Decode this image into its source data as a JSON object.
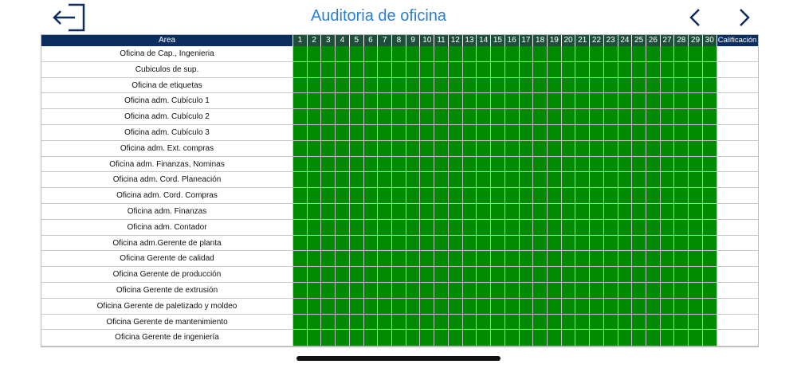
{
  "header": {
    "title": "Auditoria de oficina",
    "back_icon": "exit-arrow-icon",
    "prev_icon": "chevron-left-icon",
    "next_icon": "chevron-right-icon",
    "accent_color": "#2b7fcf"
  },
  "table": {
    "area_header": "Area",
    "score_header": "Calificación",
    "days": [
      "1",
      "2",
      "3",
      "4",
      "5",
      "6",
      "7",
      "8",
      "9",
      "10",
      "11",
      "12",
      "13",
      "14",
      "15",
      "16",
      "17",
      "18",
      "19",
      "20",
      "21",
      "22",
      "23",
      "24",
      "25",
      "26",
      "27",
      "28",
      "29",
      "30"
    ],
    "rows": [
      "Oficina de Cap., Ingenieria",
      "Cubiculos de sup.",
      "Oficina de etiquetas",
      "Oficina adm. Cubículo 1",
      "Oficina adm. Cubículo 2",
      "Oficina adm. Cubículo 3",
      "Oficina adm. Ext. compras",
      "Oficina adm. Finanzas, Nominas",
      "Oficina adm. Cord. Planeación",
      "Oficina adm. Cord. Compras",
      "Oficina adm. Finanzas",
      "Oficina adm. Contador",
      "Oficina adm.Gerente de planta",
      "Oficina Gerente de calidad",
      "Oficina Gerente de producción",
      "Oficina Gerente de extrusión",
      "Oficina Gerente de paletizado y moldeo",
      "Oficina Gerente de mantenimiento",
      "Oficina Gerente de ingeniería"
    ],
    "cell_status_color": "#008a00",
    "header_color": "#0c2e5e",
    "day_header_color": "#1d4f3a"
  }
}
